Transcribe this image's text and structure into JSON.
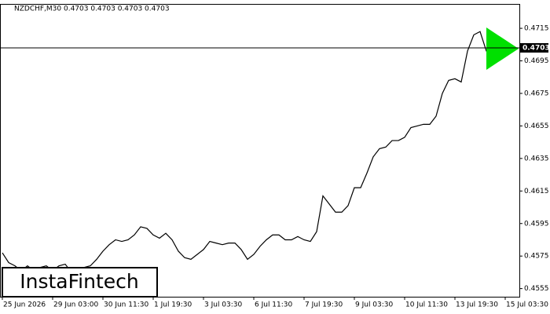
{
  "chart_data": {
    "type": "line",
    "title": "NZDCHF,M30 0.4703 0.4703 0.4703 0.4703",
    "watermark": "InstaFintech",
    "categories": [
      "25 Jun 2026",
      null,
      null,
      null,
      null,
      null,
      null,
      null,
      "29 Jun 03:00",
      null,
      null,
      null,
      null,
      null,
      null,
      null,
      "30 Jun 11:30",
      null,
      null,
      null,
      null,
      null,
      null,
      null,
      "1 Jul 19:30",
      null,
      null,
      null,
      null,
      null,
      null,
      null,
      "3 Jul 03:30",
      null,
      null,
      null,
      null,
      null,
      null,
      null,
      "6 Jul 11:30",
      null,
      null,
      null,
      null,
      null,
      null,
      null,
      "7 Jul 19:30",
      null,
      null,
      null,
      null,
      null,
      null,
      null,
      "9 Jul 03:30",
      null,
      null,
      null,
      null,
      null,
      null,
      null,
      "10 Jul 11:30",
      null,
      null,
      null,
      null,
      null,
      null,
      null,
      "13 Jul 19:30",
      null,
      null,
      null,
      null,
      null,
      null,
      null,
      "15 Jul 03:30",
      null,
      null
    ],
    "series": [
      {
        "color": "#000000",
        "values": [
          0.4577,
          0.4571,
          0.4569,
          0.4566,
          0.4569,
          0.4566,
          0.4568,
          0.4569,
          0.4566,
          0.4569,
          0.457,
          0.4565,
          0.4566,
          0.4568,
          0.4569,
          0.4573,
          0.4578,
          0.4582,
          0.4585,
          0.4584,
          0.4585,
          0.4588,
          0.4593,
          0.4592,
          0.4588,
          0.4586,
          0.4589,
          0.4585,
          0.4578,
          0.4574,
          0.4573,
          0.4576,
          0.4579,
          0.4584,
          0.4583,
          0.4582,
          0.4583,
          0.4583,
          0.4579,
          0.4573,
          0.4576,
          0.4581,
          0.4585,
          0.4588,
          0.4588,
          0.4585,
          0.4585,
          0.4587,
          0.4585,
          0.4584,
          0.459,
          0.4612,
          0.4607,
          0.4602,
          0.4602,
          0.4606,
          0.4617,
          0.4617,
          0.4626,
          0.4636,
          0.4641,
          0.4642,
          0.4646,
          0.4646,
          0.4648,
          0.4654,
          0.4655,
          0.4656,
          0.4656,
          0.4661,
          0.4675,
          0.4683,
          0.4684,
          0.4682,
          0.4701,
          0.4711,
          0.4713,
          0.4701,
          0.4699,
          0.4701,
          0.4702,
          0.4703,
          0.4703
        ]
      }
    ],
    "current_price": 0.4703,
    "ylim": [
      0.455,
      0.473
    ],
    "yticks": [
      0.4555,
      0.4575,
      0.4595,
      0.4615,
      0.4635,
      0.4655,
      0.4675,
      0.4695,
      0.4715
    ],
    "grid": false
  }
}
